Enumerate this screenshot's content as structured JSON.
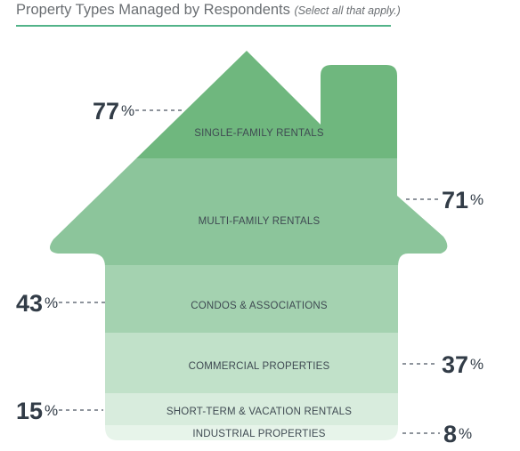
{
  "title": "Property Types Managed by Respondents",
  "title_note": "(Select all that apply.)",
  "percent_symbol": "%",
  "colors": {
    "title_rule": "#52b389",
    "bands": [
      "#6fb77e",
      "#8cc59b",
      "#a4d2b0",
      "#c1e1c9",
      "#d8ecdd",
      "#e7f4ea"
    ],
    "text": "#323c47"
  },
  "chart_data": {
    "type": "bar",
    "title": "Property Types Managed by Respondents",
    "subtitle": "(Select all that apply.)",
    "categories": [
      "SINGLE-FAMILY RENTALS",
      "MULTI-FAMILY RENTALS",
      "CONDOS & ASSOCIATIONS",
      "COMMERCIAL PROPERTIES",
      "SHORT-TERM & VACATION RENTALS",
      "INDUSTRIAL PROPERTIES"
    ],
    "values": [
      77,
      71,
      43,
      37,
      15,
      8
    ],
    "label_sides": [
      "left",
      "right",
      "left",
      "right",
      "left",
      "right"
    ],
    "unit": "%",
    "grid": false,
    "legend": "none"
  }
}
